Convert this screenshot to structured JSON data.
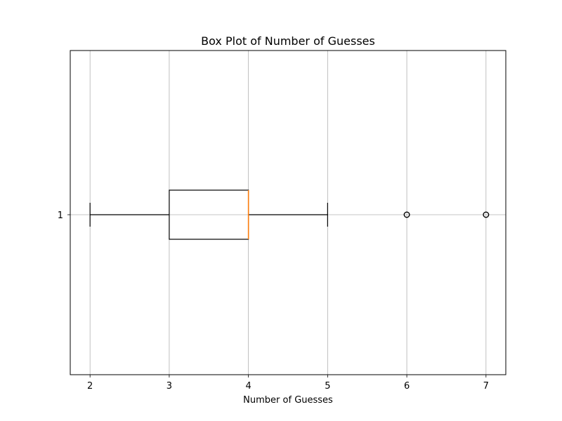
{
  "chart_data": {
    "type": "box",
    "orientation": "horizontal",
    "title": "Box Plot of Number of Guesses",
    "xlabel": "Number of Guesses",
    "ylabel": "",
    "xlim": [
      1.75,
      7.25
    ],
    "x_ticks": [
      2,
      3,
      4,
      5,
      6,
      7
    ],
    "y_ticks": [
      "1"
    ],
    "grid": true,
    "series": [
      {
        "category": "1",
        "whisker_low": 2,
        "q1": 3,
        "median": 4,
        "q3": 4,
        "whisker_high": 5,
        "outliers": [
          6,
          7
        ]
      }
    ],
    "colors": {
      "box": "#000000",
      "median": "#ff7f0e",
      "grid": "#b0b0b0",
      "outlier": "#000000"
    }
  }
}
